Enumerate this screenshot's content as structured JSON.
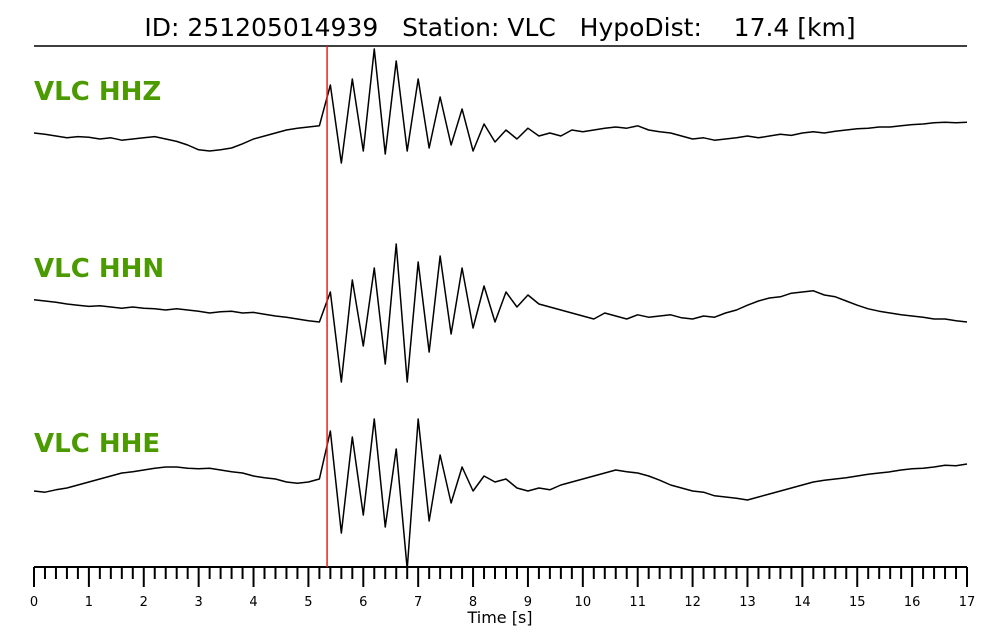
{
  "chart_data": {
    "type": "line",
    "title": "ID: 251205014939   Station: VLC   HypoDist:    17.4 [km]",
    "xlabel": "Time [s]",
    "xlim": [
      0,
      17
    ],
    "xticks": [
      0,
      1,
      2,
      3,
      4,
      5,
      6,
      7,
      8,
      9,
      10,
      11,
      12,
      13,
      14,
      15,
      16,
      17
    ],
    "ylim": [
      -1.5,
      1.5
    ],
    "pick_time": 5.34,
    "pick_color": "#e8211a",
    "name_color": "#4a9a00",
    "x": [
      0,
      0.2,
      0.4,
      0.6,
      0.8,
      1,
      1.2,
      1.4,
      1.6,
      1.8,
      2,
      2.2,
      2.4,
      2.6,
      2.8,
      3,
      3.2,
      3.4,
      3.6,
      3.8,
      4,
      4.2,
      4.4,
      4.6,
      4.8,
      5,
      5.2,
      5.4,
      5.6,
      5.8,
      6,
      6.2,
      6.4,
      6.6,
      6.8,
      7,
      7.2,
      7.4,
      7.6,
      7.8,
      8,
      8.2,
      8.4,
      8.6,
      8.8,
      9,
      9.2,
      9.4,
      9.6,
      9.8,
      10,
      10.2,
      10.4,
      10.6,
      10.8,
      11,
      11.2,
      11.4,
      11.6,
      11.8,
      12,
      12.2,
      12.4,
      12.6,
      12.8,
      13,
      13.2,
      13.4,
      13.6,
      13.8,
      14,
      14.2,
      14.4,
      14.6,
      14.8,
      15,
      15.2,
      15.4,
      15.6,
      15.8,
      16,
      16.2,
      16.4,
      16.6,
      16.8,
      17
    ],
    "series": [
      {
        "name": "VLC HHZ",
        "color": "#000000",
        "values": [
          0,
          -0.02,
          -0.05,
          -0.08,
          -0.06,
          -0.07,
          -0.1,
          -0.08,
          -0.12,
          -0.1,
          -0.08,
          -0.06,
          -0.1,
          -0.14,
          -0.2,
          -0.28,
          -0.3,
          -0.28,
          -0.25,
          -0.18,
          -0.1,
          -0.05,
          0,
          0.05,
          0.08,
          0.1,
          0.12,
          0.8,
          -0.5,
          0.9,
          -0.3,
          1.4,
          -0.35,
          1.2,
          -0.3,
          0.9,
          -0.25,
          0.6,
          -0.2,
          0.4,
          -0.3,
          0.15,
          -0.15,
          0.05,
          -0.1,
          0.08,
          -0.05,
          0,
          -0.05,
          0.05,
          0.02,
          0.05,
          0.08,
          0.1,
          0.08,
          0.12,
          0.05,
          0.02,
          0,
          -0.05,
          -0.1,
          -0.08,
          -0.12,
          -0.1,
          -0.08,
          -0.05,
          -0.08,
          -0.05,
          -0.02,
          -0.04,
          0,
          0.02,
          0,
          0.03,
          0.05,
          0.07,
          0.08,
          0.1,
          0.1,
          0.12,
          0.14,
          0.15,
          0.17,
          0.18,
          0.17,
          0.18
        ]
      },
      {
        "name": "VLC HHN",
        "color": "#000000",
        "values": [
          0.17,
          0.15,
          0.13,
          0.1,
          0.08,
          0.06,
          0.07,
          0.05,
          0.03,
          0.05,
          0.03,
          0.02,
          0,
          0.02,
          0,
          -0.02,
          -0.05,
          -0.03,
          -0.02,
          -0.05,
          -0.04,
          -0.07,
          -0.1,
          -0.12,
          -0.15,
          -0.18,
          -0.2,
          0.3,
          -1.2,
          0.5,
          -0.6,
          0.7,
          -0.9,
          1.1,
          -1.2,
          0.8,
          -0.7,
          0.9,
          -0.4,
          0.7,
          -0.3,
          0.4,
          -0.2,
          0.3,
          0.05,
          0.25,
          0.1,
          0.05,
          0,
          -0.05,
          -0.1,
          -0.15,
          -0.05,
          -0.1,
          -0.15,
          -0.08,
          -0.12,
          -0.1,
          -0.08,
          -0.13,
          -0.15,
          -0.1,
          -0.12,
          -0.05,
          0,
          0.08,
          0.15,
          0.2,
          0.22,
          0.28,
          0.3,
          0.32,
          0.25,
          0.22,
          0.15,
          0.08,
          0.02,
          -0.02,
          -0.05,
          -0.08,
          -0.1,
          -0.12,
          -0.15,
          -0.15,
          -0.18,
          -0.2
        ]
      },
      {
        "name": "VLC HHE",
        "color": "#000000",
        "values": [
          -0.1,
          -0.12,
          -0.08,
          -0.05,
          0,
          0.05,
          0.1,
          0.15,
          0.2,
          0.22,
          0.25,
          0.28,
          0.3,
          0.3,
          0.28,
          0.27,
          0.28,
          0.25,
          0.22,
          0.2,
          0.15,
          0.12,
          0.1,
          0.05,
          0.03,
          0.05,
          0.1,
          0.9,
          -0.8,
          0.8,
          -0.5,
          1.1,
          -0.7,
          0.6,
          -1.4,
          1.1,
          -0.6,
          0.5,
          -0.3,
          0.3,
          -0.1,
          0.15,
          0.05,
          0.1,
          -0.05,
          -0.1,
          -0.05,
          -0.08,
          0,
          0.05,
          0.1,
          0.15,
          0.2,
          0.25,
          0.22,
          0.2,
          0.15,
          0.08,
          0,
          -0.05,
          -0.1,
          -0.12,
          -0.18,
          -0.2,
          -0.22,
          -0.25,
          -0.2,
          -0.15,
          -0.1,
          -0.05,
          0,
          0.05,
          0.08,
          0.1,
          0.12,
          0.15,
          0.18,
          0.2,
          0.22,
          0.25,
          0.27,
          0.28,
          0.3,
          0.33,
          0.32,
          0.35
        ]
      }
    ]
  }
}
